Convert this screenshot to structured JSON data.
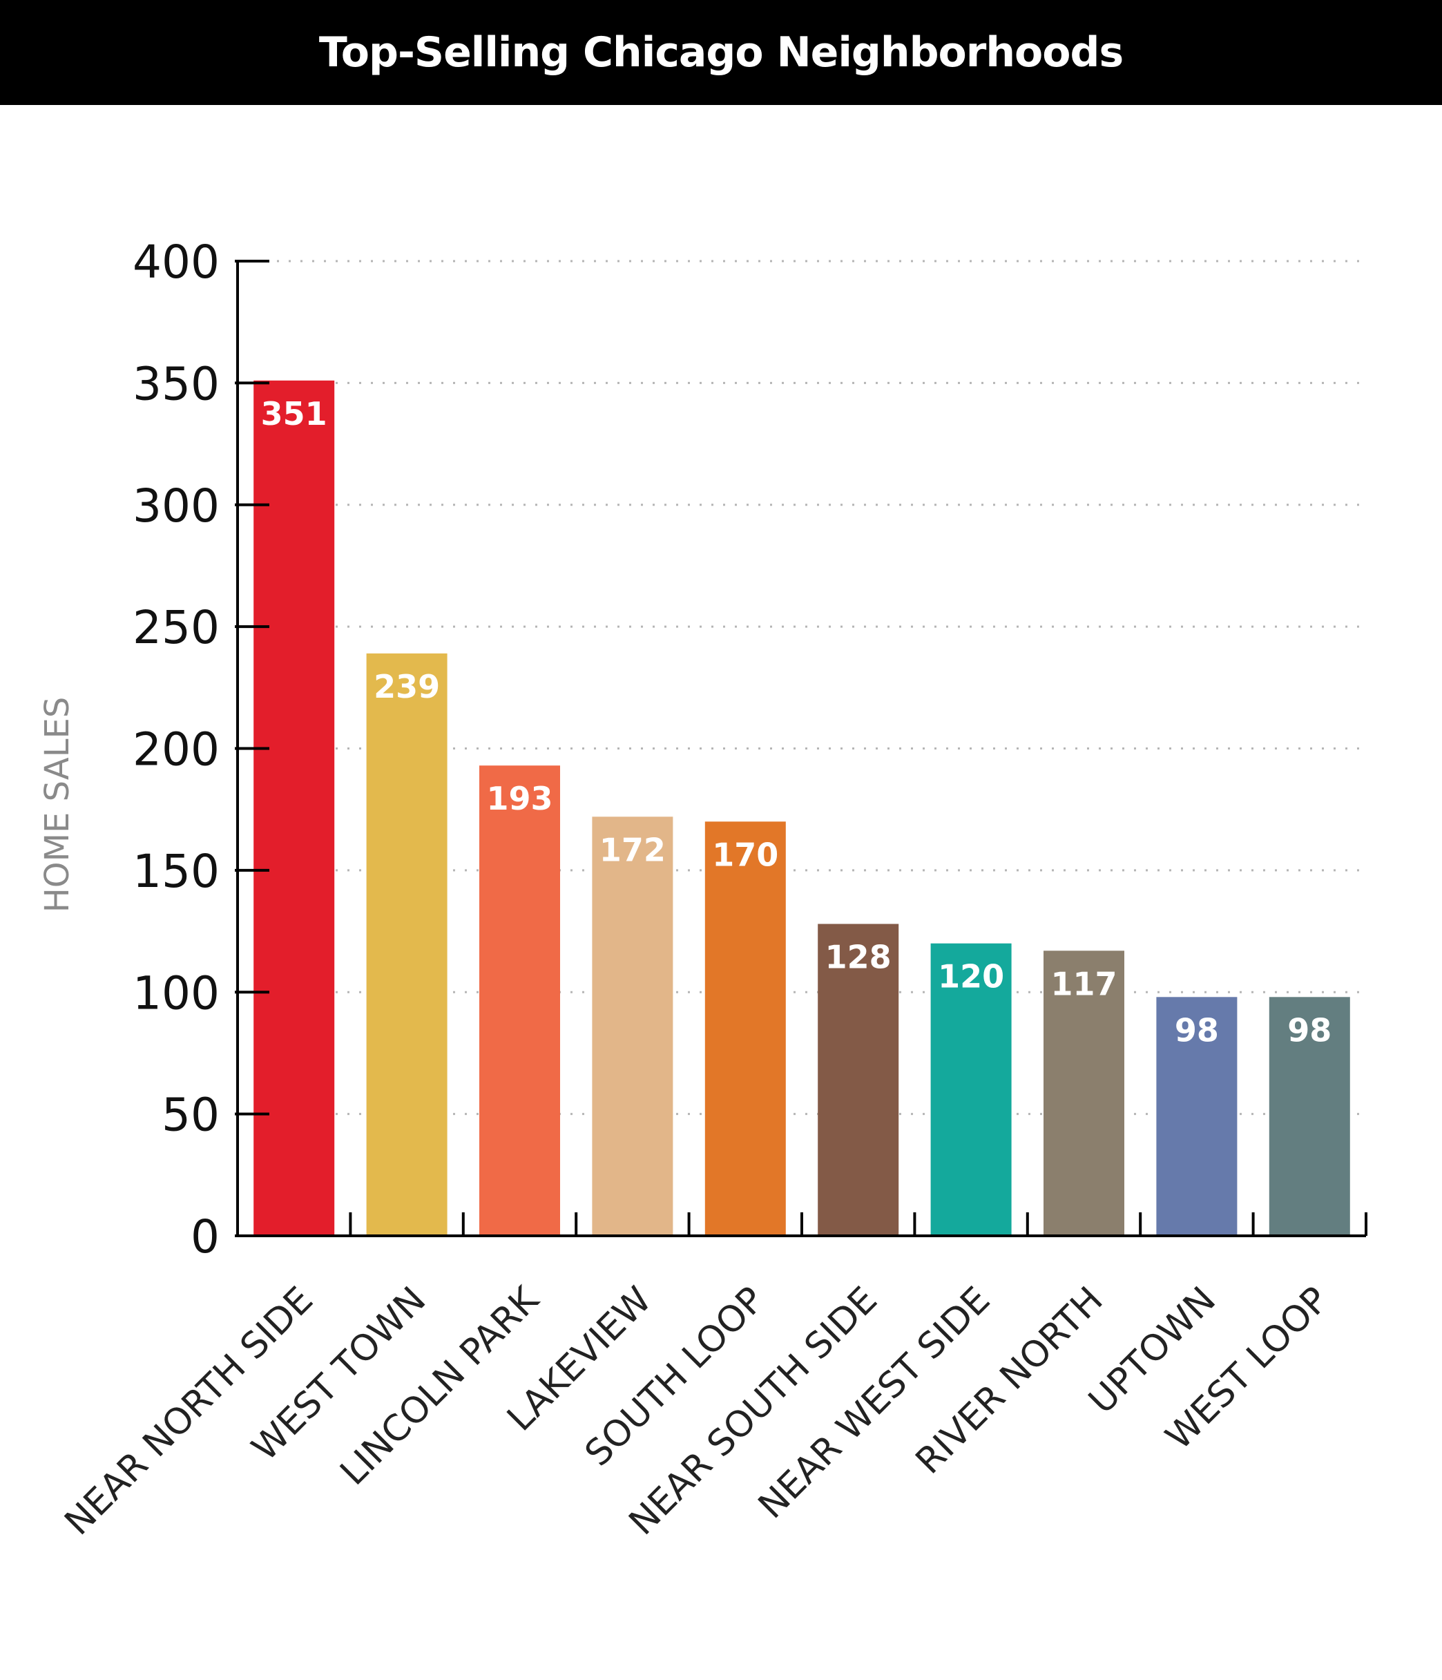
{
  "chart_data": {
    "type": "bar",
    "title": "Top-Selling Chicago Neighborhoods",
    "xlabel": "",
    "ylabel": "HOME SALES",
    "ylim": [
      0,
      400
    ],
    "yticks": [
      "0",
      "50",
      "100",
      "150",
      "200",
      "250",
      "300",
      "350",
      "400"
    ],
    "grid": true,
    "legend": "none",
    "categories": [
      "NEAR NORTH SIDE",
      "WEST TOWN",
      "LINCOLN PARK",
      "LAKEVIEW",
      "SOUTH LOOP",
      "NEAR SOUTH SIDE",
      "NEAR WEST SIDE",
      "RIVER NORTH",
      "UPTOWN",
      "WEST LOOP"
    ],
    "values": [
      351,
      239,
      193,
      172,
      170,
      128,
      120,
      117,
      98,
      98
    ],
    "value_labels": [
      "351",
      "239",
      "193",
      "172",
      "170",
      "128",
      "120",
      "117",
      "98",
      "98"
    ],
    "colors": [
      "#e31e2b",
      "#e3b94d",
      "#f06a47",
      "#e2b689",
      "#e27728",
      "#835a47",
      "#14a99c",
      "#8b7f6d",
      "#667aab",
      "#637e80"
    ]
  }
}
